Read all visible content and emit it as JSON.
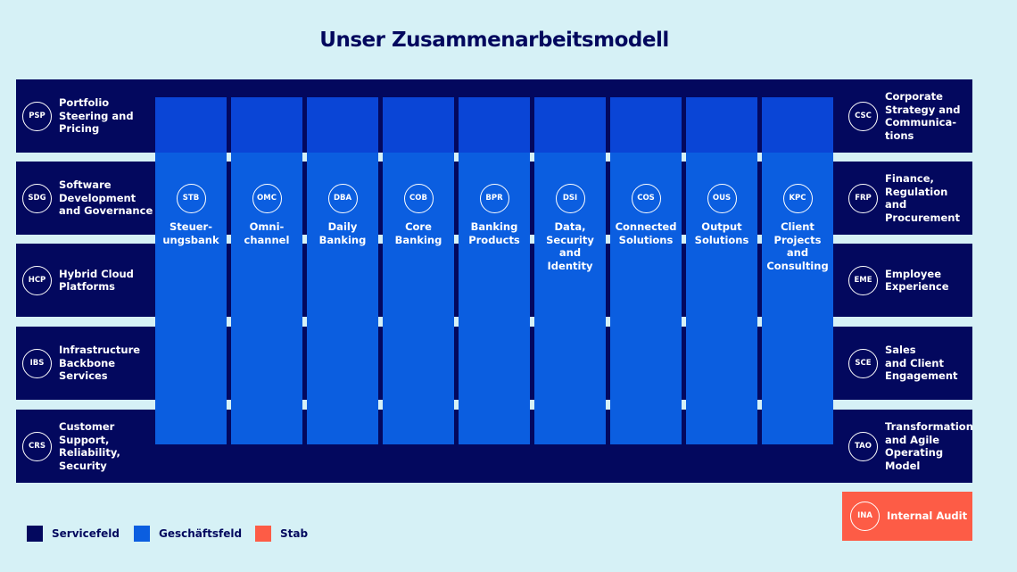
{
  "title": "Unser Zusammenarbeitsmodell",
  "left": [
    {
      "code": "PSP",
      "label": "Portfolio\nSteering and\nPricing"
    },
    {
      "code": "SDG",
      "label": "Software\nDevelopment\nand Governance"
    },
    {
      "code": "HCP",
      "label": "Hybrid Cloud\nPlatforms"
    },
    {
      "code": "IBS",
      "label": "Infrastructure\nBackbone\nServices"
    },
    {
      "code": "CRS",
      "label": "Customer\nSupport,\nReliability,\nSecurity"
    }
  ],
  "right": [
    {
      "code": "CSC",
      "label": "Corporate\nStrategy and\nCommunica-\ntions"
    },
    {
      "code": "FRP",
      "label": "Finance,\nRegulation and\nProcurement"
    },
    {
      "code": "EME",
      "label": "Employee\nExperience"
    },
    {
      "code": "SCE",
      "label": "Sales\nand Client\nEngagement"
    },
    {
      "code": "TAO",
      "label": "Transformation\nand Agile\nOperating\nModel"
    }
  ],
  "columns": [
    {
      "code": "STB",
      "label": "Steuer-\nungsbank"
    },
    {
      "code": "OMC",
      "label": "Omni-\nchannel"
    },
    {
      "code": "DBA",
      "label": "Daily\nBanking"
    },
    {
      "code": "COB",
      "label": "Core\nBanking"
    },
    {
      "code": "BPR",
      "label": "Banking\nProducts"
    },
    {
      "code": "DSI",
      "label": "Data,\nSecurity\nand\nIdentity"
    },
    {
      "code": "COS",
      "label": "Connected\nSolutions"
    },
    {
      "code": "OUS",
      "label": "Output\nSolutions"
    },
    {
      "code": "KPC",
      "label": "Client\nProjects\nand\nConsulting"
    }
  ],
  "audit": {
    "code": "INA",
    "label": "Internal Audit"
  },
  "legend": [
    {
      "label": "Servicefeld",
      "color": "#03085e"
    },
    {
      "label": "Geschäftsfeld",
      "color": "#0b5ee0"
    },
    {
      "label": "Stab",
      "color": "#fd5c46"
    }
  ]
}
